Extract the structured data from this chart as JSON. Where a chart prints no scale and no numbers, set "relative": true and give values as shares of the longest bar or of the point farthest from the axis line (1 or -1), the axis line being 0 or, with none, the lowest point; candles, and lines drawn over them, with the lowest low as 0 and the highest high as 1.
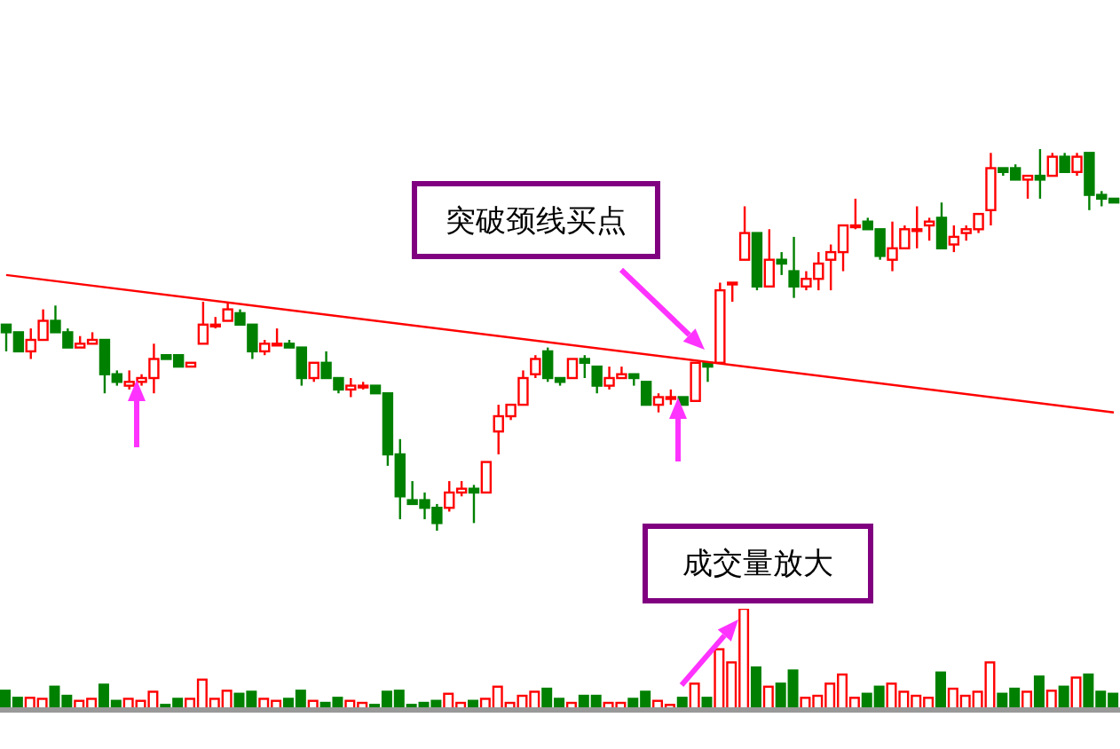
{
  "chart_data": [
    {
      "type": "candlestick",
      "relative": true,
      "categories": [
        null,
        null,
        null,
        null,
        null,
        null,
        null,
        null,
        null,
        null,
        null,
        null,
        null,
        null,
        null,
        null,
        null,
        null,
        null,
        null,
        null,
        null,
        null,
        null,
        null,
        null,
        null,
        null,
        null,
        null,
        null,
        null,
        null,
        null,
        null,
        null,
        null,
        null,
        null,
        null,
        null,
        null,
        null,
        null,
        null,
        null,
        null,
        null,
        null,
        null,
        null,
        null,
        null,
        null,
        null,
        null,
        null,
        null,
        null,
        null,
        null,
        null,
        null,
        null,
        null,
        null,
        null,
        null,
        null,
        null,
        null,
        null,
        null,
        null,
        null,
        null,
        null,
        null,
        null,
        null,
        null,
        null,
        null,
        null,
        null,
        null,
        null,
        null,
        null,
        null,
        null
      ],
      "ohlc": [
        [
          0.54,
          0.54,
          0.47,
          0.52
        ],
        [
          0.52,
          0.52,
          0.47,
          0.47
        ],
        [
          0.47,
          0.53,
          0.45,
          0.5
        ],
        [
          0.5,
          0.58,
          0.5,
          0.55
        ],
        [
          0.55,
          0.59,
          0.52,
          0.52
        ],
        [
          0.52,
          0.53,
          0.48,
          0.48
        ],
        [
          0.48,
          0.51,
          0.48,
          0.49
        ],
        [
          0.49,
          0.52,
          0.49,
          0.5
        ],
        [
          0.5,
          0.5,
          0.36,
          0.41
        ],
        [
          0.41,
          0.42,
          0.38,
          0.39
        ],
        [
          0.38,
          0.42,
          0.37,
          0.39
        ],
        [
          0.39,
          0.41,
          0.38,
          0.4
        ],
        [
          0.4,
          0.49,
          0.36,
          0.45
        ],
        [
          0.46,
          0.46,
          0.45,
          0.45
        ],
        [
          0.46,
          0.46,
          0.43,
          0.43
        ],
        [
          0.43,
          0.44,
          0.43,
          0.44
        ],
        [
          0.49,
          0.6,
          0.49,
          0.54
        ],
        [
          0.54,
          0.56,
          0.53,
          0.54
        ],
        [
          0.55,
          0.6,
          0.55,
          0.58
        ],
        [
          0.57,
          0.58,
          0.54,
          0.54
        ],
        [
          0.54,
          0.54,
          0.45,
          0.47
        ],
        [
          0.47,
          0.5,
          0.46,
          0.49
        ],
        [
          0.49,
          0.53,
          0.49,
          0.49
        ],
        [
          0.49,
          0.5,
          0.48,
          0.48
        ],
        [
          0.48,
          0.48,
          0.38,
          0.4
        ],
        [
          0.4,
          0.44,
          0.39,
          0.44
        ],
        [
          0.44,
          0.47,
          0.4,
          0.4
        ],
        [
          0.4,
          0.4,
          0.36,
          0.37
        ],
        [
          0.37,
          0.4,
          0.35,
          0.38
        ],
        [
          0.38,
          0.39,
          0.37,
          0.38
        ],
        [
          0.38,
          0.38,
          0.36,
          0.36
        ],
        [
          0.36,
          0.36,
          0.17,
          0.2
        ],
        [
          0.2,
          0.24,
          0.03,
          0.09
        ],
        [
          0.08,
          0.13,
          0.07,
          0.07
        ],
        [
          0.08,
          0.1,
          0.03,
          0.06
        ],
        [
          0.06,
          0.07,
          0,
          0.02
        ],
        [
          0.06,
          0.13,
          0.05,
          0.1
        ],
        [
          0.1,
          0.13,
          0.09,
          0.11
        ],
        [
          0.11,
          0.12,
          0.02,
          0.1
        ],
        [
          0.1,
          0.18,
          0.1,
          0.18
        ],
        [
          0.26,
          0.33,
          0.2,
          0.3
        ],
        [
          0.3,
          0.33,
          0.29,
          0.33
        ],
        [
          0.33,
          0.42,
          0.33,
          0.4
        ],
        [
          0.41,
          0.46,
          0.4,
          0.45
        ],
        [
          0.47,
          0.48,
          0.39,
          0.4
        ],
        [
          0.4,
          0.4,
          0.38,
          0.39
        ],
        [
          0.4,
          0.45,
          0.4,
          0.45
        ],
        [
          0.45,
          0.46,
          0.4,
          0.44
        ],
        [
          0.43,
          0.43,
          0.36,
          0.38
        ],
        [
          0.38,
          0.43,
          0.37,
          0.4
        ],
        [
          0.4,
          0.43,
          0.4,
          0.41
        ],
        [
          0.41,
          0.41,
          0.38,
          0.4
        ],
        [
          0.39,
          0.39,
          0.33,
          0.33
        ],
        [
          0.33,
          0.36,
          0.31,
          0.35
        ],
        [
          0.35,
          0.37,
          0.33,
          0.35
        ],
        [
          0.35,
          0.35,
          0.33,
          0.33
        ],
        [
          0.34,
          0.44,
          0.34,
          0.44
        ],
        [
          0.44,
          0.44,
          0.39,
          0.43
        ],
        [
          0.44,
          0.65,
          0.44,
          0.63
        ],
        [
          0.65,
          0.65,
          0.6,
          0.65
        ],
        [
          0.71,
          0.85,
          0.71,
          0.78
        ],
        [
          0.78,
          0.78,
          0.63,
          0.64
        ],
        [
          0.64,
          0.79,
          0.64,
          0.71
        ],
        [
          0.71,
          0.73,
          0.67,
          0.7
        ],
        [
          0.68,
          0.77,
          0.61,
          0.64
        ],
        [
          0.64,
          0.68,
          0.63,
          0.66
        ],
        [
          0.66,
          0.73,
          0.63,
          0.7
        ],
        [
          0.71,
          0.75,
          0.63,
          0.73
        ],
        [
          0.73,
          0.8,
          0.68,
          0.8
        ],
        [
          0.8,
          0.87,
          0.79,
          0.8
        ],
        [
          0.81,
          0.82,
          0.79,
          0.79
        ],
        [
          0.79,
          0.79,
          0.71,
          0.72
        ],
        [
          0.71,
          0.81,
          0.68,
          0.74
        ],
        [
          0.74,
          0.8,
          0.74,
          0.79
        ],
        [
          0.79,
          0.85,
          0.74,
          0.79
        ],
        [
          0.8,
          0.82,
          0.76,
          0.81
        ],
        [
          0.82,
          0.86,
          0.74,
          0.74
        ],
        [
          0.75,
          0.8,
          0.73,
          0.77
        ],
        [
          0.78,
          0.8,
          0.76,
          0.79
        ],
        [
          0.79,
          0.83,
          0.78,
          0.83
        ],
        [
          0.84,
          0.99,
          0.8,
          0.95
        ],
        [
          0.95,
          0.95,
          0.93,
          0.94
        ],
        [
          0.95,
          0.96,
          0.92,
          0.92
        ],
        [
          0.92,
          0.93,
          0.87,
          0.93
        ],
        [
          0.93,
          1,
          0.87,
          0.92
        ],
        [
          0.93,
          0.99,
          0.93,
          0.98
        ],
        [
          0.98,
          0.99,
          0.94,
          0.94
        ],
        [
          0.94,
          0.99,
          0.93,
          0.98
        ],
        [
          0.99,
          0.99,
          0.84,
          0.88
        ],
        [
          0.88,
          0.89,
          0.85,
          0.87
        ],
        [
          0.87,
          0.87,
          0.86,
          0.86
        ]
      ],
      "colors": [
        "#008000",
        "#008000",
        "#ff0000",
        "#ff0000",
        "#008000",
        "#008000",
        "#ff0000",
        "#ff0000",
        "#008000",
        "#008000",
        "#ff0000",
        "#ff0000",
        "#ff0000",
        "#008000",
        "#008000",
        "#ff0000",
        "#ff0000",
        "#ff0000",
        "#ff0000",
        "#008000",
        "#008000",
        "#ff0000",
        "#ff0000",
        "#008000",
        "#008000",
        "#ff0000",
        "#008000",
        "#008000",
        "#ff0000",
        "#ff0000",
        "#008000",
        "#008000",
        "#008000",
        "#008000",
        "#008000",
        "#008000",
        "#ff0000",
        "#ff0000",
        "#008000",
        "#ff0000",
        "#ff0000",
        "#ff0000",
        "#ff0000",
        "#ff0000",
        "#008000",
        "#008000",
        "#ff0000",
        "#008000",
        "#008000",
        "#ff0000",
        "#ff0000",
        "#008000",
        "#008000",
        "#ff0000",
        "#ff0000",
        "#008000",
        "#ff0000",
        "#008000",
        "#ff0000",
        "#ff0000",
        "#ff0000",
        "#008000",
        "#ff0000",
        "#008000",
        "#008000",
        "#ff0000",
        "#ff0000",
        "#ff0000",
        "#ff0000",
        "#ff0000",
        "#008000",
        "#008000",
        "#ff0000",
        "#ff0000",
        "#ff0000",
        "#ff0000",
        "#008000",
        "#ff0000",
        "#ff0000",
        "#ff0000",
        "#ff0000",
        "#008000",
        "#008000",
        "#ff0000",
        "#008000",
        "#ff0000",
        "#008000",
        "#ff0000",
        "#008000",
        "#008000",
        "#008000"
      ],
      "series": [
        {
          "type": "line",
          "color": "#ff0000",
          "values": [
            0.67,
            null,
            null,
            null,
            null,
            null,
            null,
            null,
            null,
            null,
            null,
            null,
            null,
            null,
            null,
            null,
            null,
            null,
            null,
            null,
            null,
            null,
            null,
            null,
            null,
            null,
            null,
            null,
            null,
            null,
            null,
            null,
            null,
            null,
            null,
            null,
            null,
            null,
            null,
            null,
            null,
            null,
            null,
            null,
            null,
            null,
            null,
            null,
            null,
            null,
            null,
            null,
            null,
            null,
            null,
            null,
            null,
            null,
            null,
            null,
            null,
            null,
            null,
            null,
            null,
            null,
            null,
            null,
            null,
            null,
            null,
            null,
            null,
            null,
            null,
            null,
            null,
            null,
            null,
            null,
            null,
            null,
            null,
            null,
            null,
            null,
            null,
            null,
            null,
            null,
            0.31
          ]
        }
      ],
      "annotations": [
        "突破颈线买点"
      ]
    },
    {
      "type": "bar",
      "relative": true,
      "categories": [
        null,
        null,
        null,
        null,
        null,
        null,
        null,
        null,
        null,
        null,
        null,
        null,
        null,
        null,
        null,
        null,
        null,
        null,
        null,
        null,
        null,
        null,
        null,
        null,
        null,
        null,
        null,
        null,
        null,
        null,
        null,
        null,
        null,
        null,
        null,
        null,
        null,
        null,
        null,
        null,
        null,
        null,
        null,
        null,
        null,
        null,
        null,
        null,
        null,
        null,
        null,
        null,
        null,
        null,
        null,
        null,
        null,
        null,
        null,
        null,
        null,
        null,
        null,
        null,
        null,
        null,
        null,
        null,
        null,
        null,
        null,
        null,
        null,
        null,
        null,
        null,
        null,
        null,
        null,
        null,
        null,
        null,
        null,
        null,
        null,
        null,
        null,
        null,
        null,
        null,
        null
      ],
      "values": [
        0.19,
        0.12,
        0.12,
        0.11,
        0.23,
        0.14,
        0.09,
        0.11,
        0.25,
        0.09,
        0.11,
        0.09,
        0.18,
        0.05,
        0.11,
        0.11,
        0.3,
        0.11,
        0.19,
        0.16,
        0.18,
        0.11,
        0.09,
        0.11,
        0.19,
        0.09,
        0.07,
        0.12,
        0.09,
        0.07,
        0.05,
        0.18,
        0.19,
        0.05,
        0.07,
        0.09,
        0.16,
        0.07,
        0.09,
        0.11,
        0.23,
        0.07,
        0.14,
        0.18,
        0.21,
        0.11,
        0.07,
        0.14,
        0.14,
        0.07,
        0.07,
        0.11,
        0.18,
        0.09,
        0.05,
        0.12,
        0.26,
        0.12,
        0.6,
        0.47,
        1,
        0.42,
        0.23,
        0.26,
        0.39,
        0.12,
        0.14,
        0.26,
        0.35,
        0.12,
        0.16,
        0.23,
        0.26,
        0.18,
        0.14,
        0.12,
        0.37,
        0.21,
        0.14,
        0.18,
        0.47,
        0.16,
        0.21,
        0.18,
        0.33,
        0.19,
        0.23,
        0.32,
        0.35,
        0.18,
        0.16
      ],
      "colors": [
        "#008000",
        "#008000",
        "#ff0000",
        "#ff0000",
        "#008000",
        "#008000",
        "#ff0000",
        "#ff0000",
        "#008000",
        "#008000",
        "#ff0000",
        "#ff0000",
        "#ff0000",
        "#008000",
        "#008000",
        "#ff0000",
        "#ff0000",
        "#ff0000",
        "#ff0000",
        "#008000",
        "#008000",
        "#ff0000",
        "#ff0000",
        "#008000",
        "#008000",
        "#ff0000",
        "#008000",
        "#008000",
        "#ff0000",
        "#ff0000",
        "#008000",
        "#008000",
        "#008000",
        "#008000",
        "#008000",
        "#008000",
        "#ff0000",
        "#ff0000",
        "#008000",
        "#ff0000",
        "#ff0000",
        "#ff0000",
        "#ff0000",
        "#ff0000",
        "#008000",
        "#008000",
        "#ff0000",
        "#008000",
        "#008000",
        "#ff0000",
        "#ff0000",
        "#008000",
        "#008000",
        "#ff0000",
        "#ff0000",
        "#008000",
        "#ff0000",
        "#008000",
        "#ff0000",
        "#ff0000",
        "#ff0000",
        "#008000",
        "#ff0000",
        "#008000",
        "#008000",
        "#ff0000",
        "#ff0000",
        "#ff0000",
        "#ff0000",
        "#ff0000",
        "#008000",
        "#008000",
        "#ff0000",
        "#ff0000",
        "#ff0000",
        "#ff0000",
        "#008000",
        "#ff0000",
        "#ff0000",
        "#ff0000",
        "#ff0000",
        "#008000",
        "#008000",
        "#ff0000",
        "#008000",
        "#ff0000",
        "#008000",
        "#ff0000",
        "#008000",
        "#008000",
        "#008000"
      ],
      "annotations": [
        "成交量放大"
      ]
    }
  ]
}
